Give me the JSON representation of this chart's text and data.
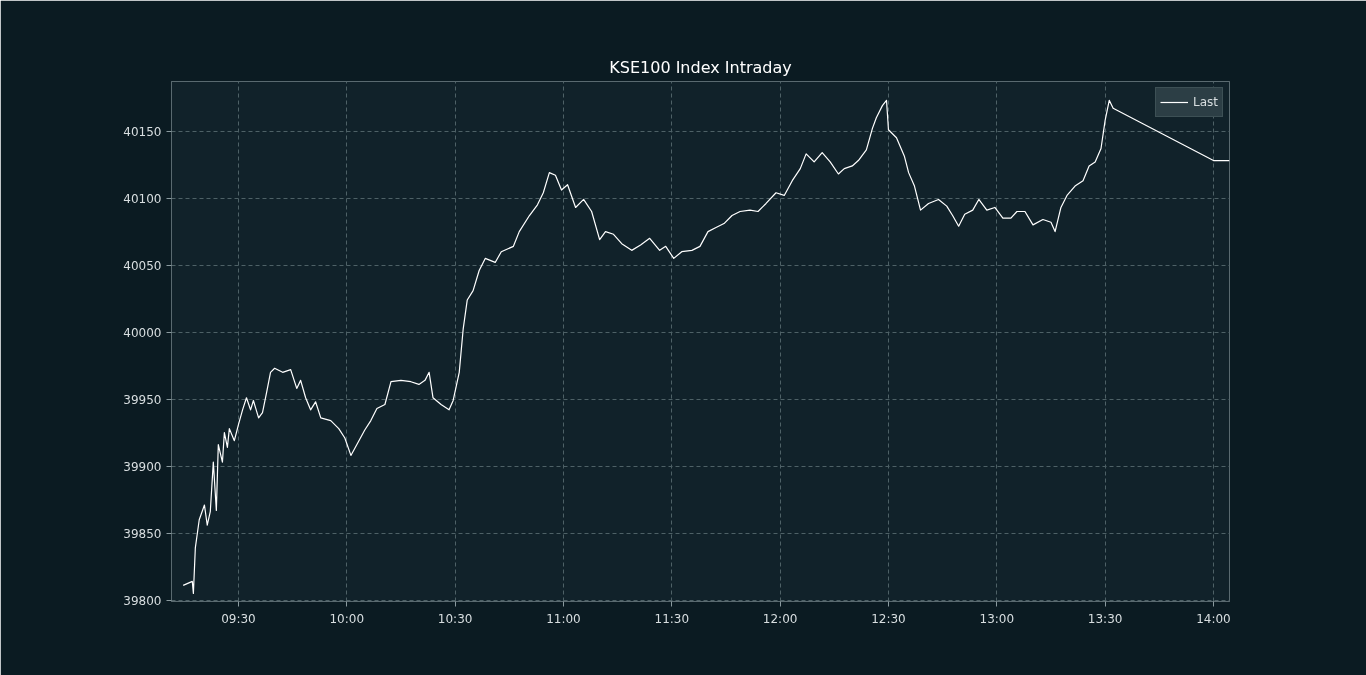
{
  "chart_data": {
    "type": "line",
    "title": "KSE100 Index Intraday",
    "xlim": [
      9.191,
      14.074
    ],
    "ylim": [
      39799,
      40187
    ],
    "xticks": [
      {
        "value": 9.5,
        "label": "09:30"
      },
      {
        "value": 10,
        "label": "10:00"
      },
      {
        "value": 10.5,
        "label": "10:30"
      },
      {
        "value": 11,
        "label": "11:00"
      },
      {
        "value": 11.5,
        "label": "11:30"
      },
      {
        "value": 12,
        "label": "12:00"
      },
      {
        "value": 12.5,
        "label": "12:30"
      },
      {
        "value": 13,
        "label": "13:00"
      },
      {
        "value": 13.5,
        "label": "13:30"
      },
      {
        "value": 14,
        "label": "14:00"
      }
    ],
    "yticks": [
      39800,
      39850,
      39900,
      39950,
      40000,
      40050,
      40100,
      40150
    ],
    "grid": true,
    "legend": "top right",
    "line_style": "solid",
    "marker": "none",
    "series": [
      {
        "name": "Last",
        "color": "#ffffff",
        "x": [
          9.245,
          9.287,
          9.292,
          9.301,
          9.319,
          9.343,
          9.356,
          9.37,
          9.384,
          9.398,
          9.407,
          9.426,
          9.435,
          9.449,
          9.458,
          9.481,
          9.5,
          9.519,
          9.537,
          9.556,
          9.569,
          9.593,
          9.611,
          9.63,
          9.648,
          9.667,
          9.704,
          9.741,
          9.769,
          9.787,
          9.81,
          9.833,
          9.856,
          9.88,
          9.926,
          9.963,
          9.991,
          10.019,
          10.046,
          10.083,
          10.111,
          10.139,
          10.176,
          10.204,
          10.25,
          10.296,
          10.333,
          10.361,
          10.38,
          10.398,
          10.435,
          10.472,
          10.491,
          10.519,
          10.537,
          10.556,
          10.583,
          10.611,
          10.639,
          10.685,
          10.713,
          10.769,
          10.796,
          10.843,
          10.88,
          10.907,
          10.935,
          10.963,
          10.991,
          11.019,
          11.056,
          11.093,
          11.13,
          11.167,
          11.194,
          11.231,
          11.269,
          11.315,
          11.356,
          11.398,
          11.444,
          11.472,
          11.509,
          11.546,
          11.593,
          11.63,
          11.667,
          11.704,
          11.741,
          11.778,
          11.815,
          11.861,
          11.898,
          11.935,
          11.981,
          12.019,
          12.056,
          12.093,
          12.12,
          12.157,
          12.194,
          12.231,
          12.269,
          12.296,
          12.333,
          12.361,
          12.398,
          12.426,
          12.444,
          12.472,
          12.491,
          12.5,
          12.537,
          12.574,
          12.593,
          12.62,
          12.648,
          12.685,
          12.731,
          12.769,
          12.796,
          12.824,
          12.852,
          12.889,
          12.917,
          12.954,
          12.991,
          13.028,
          13.065,
          13.093,
          13.13,
          13.167,
          13.213,
          13.25,
          13.269,
          13.296,
          13.324,
          13.361,
          13.398,
          13.426,
          13.454,
          13.481,
          13.5,
          13.519,
          13.537,
          14.0,
          14.074
        ],
        "values": [
          39811,
          39814,
          39805,
          39839,
          39860,
          39871,
          39856,
          39866,
          39903,
          39867,
          39916,
          39903,
          39925,
          39914,
          39928,
          39919,
          39931,
          39942,
          39951,
          39942,
          39949,
          39936,
          39940,
          39955,
          39970,
          39973,
          39970,
          39972,
          39958,
          39964,
          39951,
          39942,
          39948,
          39936,
          39934,
          39928,
          39921,
          39908,
          39916,
          39927,
          39934,
          39943,
          39946,
          39963,
          39964,
          39963,
          39961,
          39964,
          39970,
          39951,
          39946,
          39942,
          39949,
          39970,
          40002,
          40024,
          40031,
          40046,
          40055,
          40052,
          40060,
          40064,
          40075,
          40087,
          40095,
          40104,
          40119,
          40117,
          40106,
          40110,
          40093,
          40099,
          40090,
          40069,
          40075,
          40073,
          40066,
          40061,
          40065,
          40070,
          40061,
          40064,
          40055,
          40060,
          40061,
          40064,
          40075,
          40078,
          40081,
          40087,
          40090,
          40091,
          40090,
          40096,
          40104,
          40102,
          40113,
          40122,
          40133,
          40127,
          40134,
          40127,
          40118,
          40122,
          40124,
          40128,
          40136,
          40152,
          40160,
          40169,
          40173,
          40151,
          40145,
          40131,
          40119,
          40109,
          40091,
          40096,
          40099,
          40094,
          40087,
          40079,
          40088,
          40091,
          40099,
          40091,
          40093,
          40085,
          40085,
          40090,
          40090,
          40080,
          40084,
          40082,
          40075,
          40093,
          40102,
          40109,
          40113,
          40124,
          40127,
          40137,
          40158,
          40173,
          40167,
          40128,
          40128
        ]
      }
    ]
  }
}
